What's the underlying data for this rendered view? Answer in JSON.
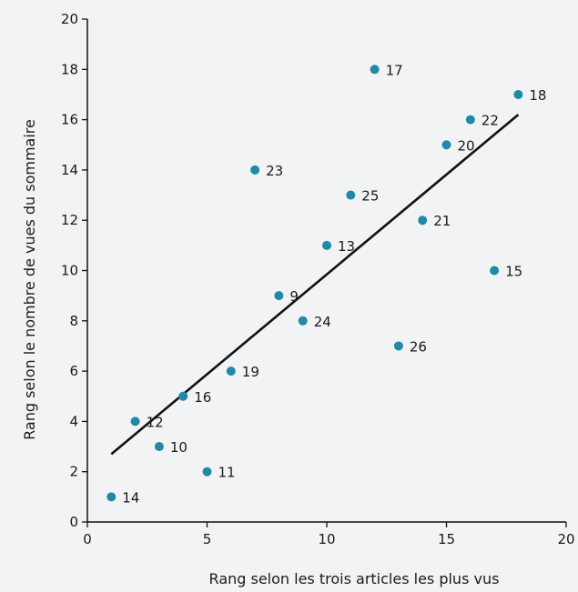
{
  "chart_data": {
    "type": "scatter",
    "title": "",
    "xlabel": "Rang selon les trois articles les plus vus",
    "ylabel": "Rang selon le nombre de vues du sommaire",
    "xlim": [
      0,
      20
    ],
    "ylim": [
      0,
      20
    ],
    "x_ticks": [
      0,
      5,
      10,
      15,
      20
    ],
    "x_tick_labels": [
      "0",
      "5",
      "10",
      "15",
      "20"
    ],
    "y_ticks": [
      0,
      2,
      4,
      6,
      8,
      10,
      12,
      14,
      16,
      18,
      20
    ],
    "y_tick_labels": [
      "0",
      "2",
      "4",
      "6",
      "8",
      "10",
      "12",
      "14",
      "16",
      "18",
      "20"
    ],
    "grid": false,
    "point_color": "#1e8aa6",
    "line_color": "#111111",
    "points": [
      {
        "label": "14",
        "x": 1,
        "y": 1
      },
      {
        "label": "12",
        "x": 2,
        "y": 4
      },
      {
        "label": "10",
        "x": 3,
        "y": 3
      },
      {
        "label": "16",
        "x": 4,
        "y": 5
      },
      {
        "label": "11",
        "x": 5,
        "y": 2
      },
      {
        "label": "19",
        "x": 6,
        "y": 6
      },
      {
        "label": "23",
        "x": 7,
        "y": 14
      },
      {
        "label": "9",
        "x": 8,
        "y": 9
      },
      {
        "label": "24",
        "x": 9,
        "y": 8
      },
      {
        "label": "13",
        "x": 10,
        "y": 11
      },
      {
        "label": "25",
        "x": 11,
        "y": 13
      },
      {
        "label": "17",
        "x": 12,
        "y": 18
      },
      {
        "label": "26",
        "x": 13,
        "y": 7
      },
      {
        "label": "21",
        "x": 14,
        "y": 12
      },
      {
        "label": "20",
        "x": 15,
        "y": 15
      },
      {
        "label": "22",
        "x": 16,
        "y": 16
      },
      {
        "label": "15",
        "x": 17,
        "y": 10
      },
      {
        "label": "18",
        "x": 18,
        "y": 17
      }
    ],
    "trend_line": {
      "x1": 1,
      "y1": 2.7,
      "x2": 18,
      "y2": 16.2
    }
  }
}
